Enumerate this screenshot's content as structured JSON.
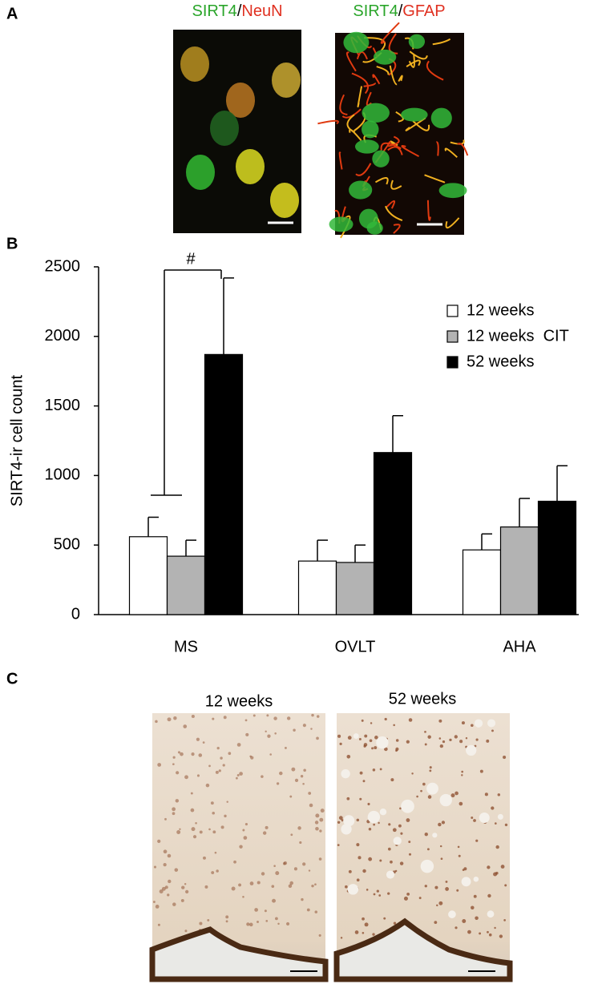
{
  "panel_labels": [
    "A",
    "B",
    "C"
  ],
  "panel_a": {
    "images": [
      {
        "title": [
          "SIRT4",
          "/",
          "NeuN"
        ]
      },
      {
        "title": [
          "SIRT4",
          "/",
          "GFAP"
        ]
      }
    ]
  },
  "chart_data": {
    "type": "bar",
    "y_label": "SIRT4-ir cell count",
    "annotation": "#",
    "categories": [
      "MS",
      "OVLT",
      "AHA"
    ],
    "series": [
      {
        "name": "12 weeks",
        "color": "#ffffff",
        "values": [
          560,
          385,
          465
        ],
        "errors": [
          140,
          150,
          115
        ]
      },
      {
        "name": "12 weeks  CIT",
        "color": "#b3b3b3",
        "values": [
          420,
          375,
          630
        ],
        "errors": [
          115,
          125,
          205
        ]
      },
      {
        "name": "52 weeks",
        "color": "#000000",
        "values": [
          1870,
          1165,
          815
        ],
        "errors": [
          550,
          265,
          255
        ]
      }
    ],
    "ylim": [
      0,
      2500
    ],
    "yticks": [
      0,
      500,
      1000,
      1500,
      2000,
      2500
    ]
  },
  "panel_c": {
    "images": [
      {
        "title": "12 weeks"
      },
      {
        "title": "52 weeks"
      }
    ]
  }
}
